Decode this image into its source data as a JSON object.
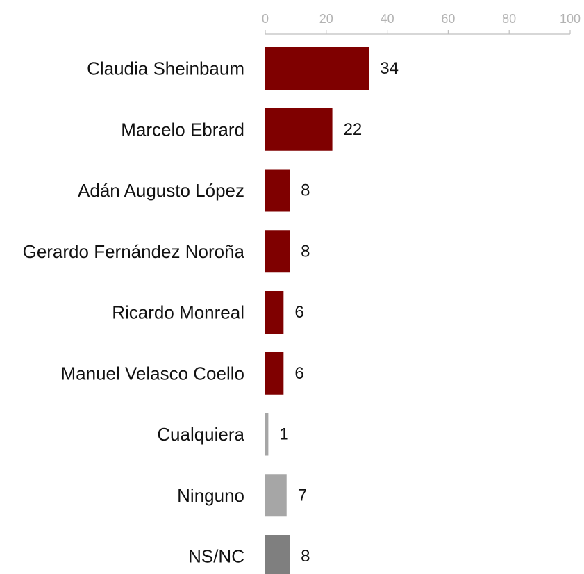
{
  "chart_data": {
    "type": "bar",
    "orientation": "horizontal",
    "categories": [
      "Claudia Sheinbaum",
      "Marcelo Ebrard",
      "Adán Augusto López",
      "Gerardo Fernández Noroña",
      "Ricardo Monreal",
      "Manuel Velasco Coello",
      "Cualquiera",
      "Ninguno",
      "NS/NC"
    ],
    "values": [
      34,
      22,
      8,
      8,
      6,
      6,
      1,
      7,
      8
    ],
    "bar_colors": [
      "#7f0000",
      "#7f0000",
      "#7f0000",
      "#7f0000",
      "#7f0000",
      "#7f0000",
      "#a6a6a6",
      "#a6a6a6",
      "#7f7f7f"
    ],
    "xlim": [
      0,
      100
    ],
    "x_ticks": [
      0,
      20,
      40,
      60,
      80,
      100
    ],
    "x_axis_position": "top",
    "grid": false,
    "data_labels": true,
    "title": "",
    "xlabel": "",
    "ylabel": ""
  }
}
